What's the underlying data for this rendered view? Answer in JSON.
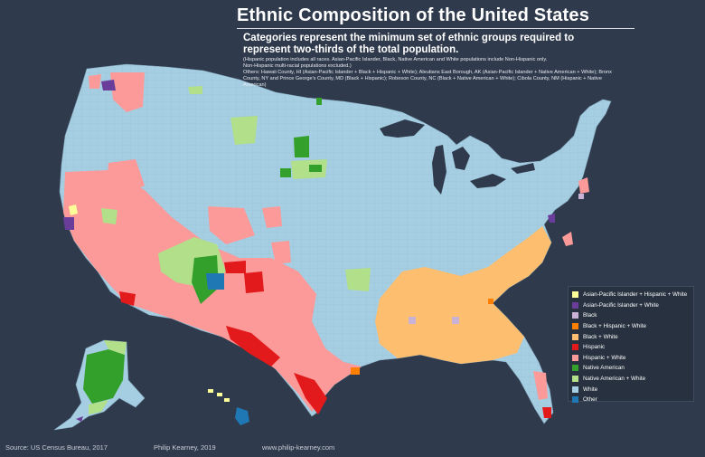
{
  "header": {
    "title": "Ethnic Composition of the United States",
    "subtitle": "Categories represent the minimum set of ethnic groups required to represent two-thirds of the total population.",
    "note_1": "(Hispanic population includes all races.  Asian-Pacific Islander, Black, Native American and White populations include Non-Hispanic only.",
    "note_2": "Non-Hispanic multi-racial populations excluded.)",
    "note_3": "Others:  Hawaii County, HI (Asian-Pacific Islander + Black + Hispanic + White); Aleutians East Borough, AK (Asian-Pacific Islander + Native American + White); Bronx County, NY and Prince George's County, MD (Black + Hispanic); Robeson County, NC (Black + Native American + White); Cibola County, NM (Hispanic + Native American)"
  },
  "legend": {
    "items": [
      {
        "label": "Asian-Pacific Islander + Hispanic + White",
        "color": "#ffff99"
      },
      {
        "label": "Asian-Pacific Islander + White",
        "color": "#6a3d9a"
      },
      {
        "label": "Black",
        "color": "#cab2d6"
      },
      {
        "label": "Black + Hispanic + White",
        "color": "#ff7f00"
      },
      {
        "label": "Black + White",
        "color": "#fdbf6f"
      },
      {
        "label": "Hispanic",
        "color": "#e31a1c"
      },
      {
        "label": "Hispanic + White",
        "color": "#fb9a99"
      },
      {
        "label": "Native American",
        "color": "#33a02c"
      },
      {
        "label": "Native American + White",
        "color": "#b2df8a"
      },
      {
        "label": "White",
        "color": "#a6cee3"
      },
      {
        "label": "Other",
        "color": "#1f78b4"
      }
    ]
  },
  "footer": {
    "source": "Source:  US Census Bureau, 2017",
    "author": "Philip Kearney, 2019",
    "website": "www.philip-kearney.com"
  },
  "colors": {
    "background": "#2f3a4c",
    "water": "#2f3a4c",
    "county_border": "#8fb3c8",
    "state_border": "#6f8799"
  },
  "map": {
    "regions": [
      "contiguous-us",
      "alaska",
      "hawaii"
    ]
  }
}
